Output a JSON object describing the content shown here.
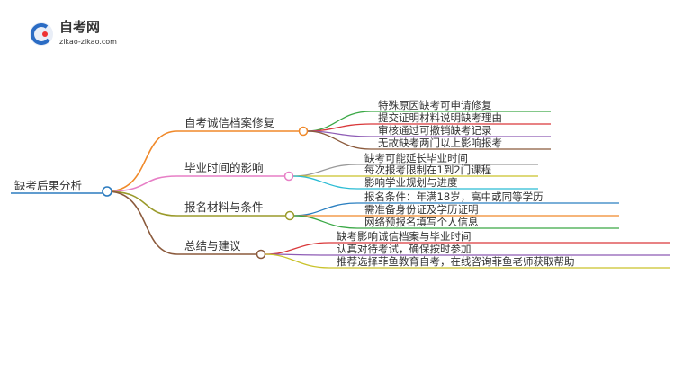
{
  "header": {
    "logo_title": "自考网",
    "logo_url": "zikao-zikao.com"
  },
  "root": {
    "label": "缺考后果分析"
  },
  "branches": [
    {
      "label": "自考诚信档案修复",
      "children": [
        "特殊原因缺考可申请修复",
        "提交证明材料说明缺考理由",
        "审核通过可撤销缺考记录",
        "无故缺考两门以上影响报考"
      ]
    },
    {
      "label": "毕业时间的影响",
      "children": [
        "缺考可能延长毕业时间",
        "每次报考限制在1到2门课程",
        "影响学业规划与进度"
      ]
    },
    {
      "label": "报名材料与条件",
      "children": [
        "报名条件：年满18岁，高中或同等学历",
        "需准备身份证及学历证明",
        "网络预报名填写个人信息"
      ]
    },
    {
      "label": "总结与建议",
      "children": [
        "缺考影响诚信档案与毕业时间",
        "认真对待考试，确保按时参加",
        "推荐选择菲鱼教育自考，在线咨询菲鱼老师获取帮助"
      ]
    }
  ]
}
